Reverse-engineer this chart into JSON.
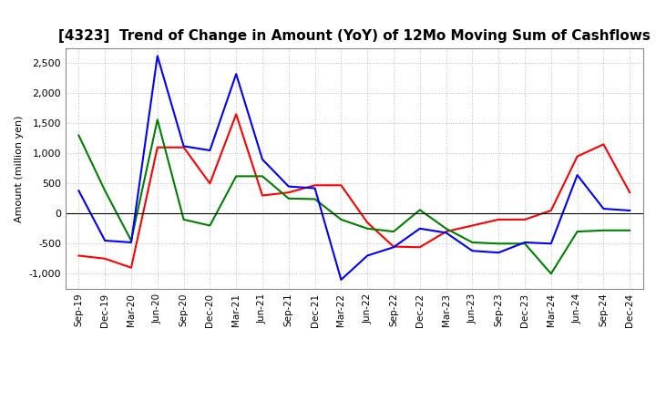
{
  "title": "[4323]  Trend of Change in Amount (YoY) of 12Mo Moving Sum of Cashflows",
  "ylabel": "Amount (million yen)",
  "x_labels": [
    "Sep-19",
    "Dec-19",
    "Mar-20",
    "Jun-20",
    "Sep-20",
    "Dec-20",
    "Mar-21",
    "Jun-21",
    "Sep-21",
    "Dec-21",
    "Mar-22",
    "Jun-22",
    "Sep-22",
    "Dec-22",
    "Mar-23",
    "Jun-23",
    "Sep-23",
    "Dec-23",
    "Mar-24",
    "Jun-24",
    "Sep-24",
    "Dec-24"
  ],
  "operating": [
    -700,
    -750,
    -900,
    1100,
    1100,
    500,
    1650,
    300,
    350,
    470,
    470,
    -150,
    -550,
    -560,
    -300,
    -200,
    -100,
    -100,
    50,
    950,
    1150,
    350
  ],
  "investing": [
    1300,
    380,
    -450,
    1560,
    -100,
    -200,
    620,
    620,
    250,
    240,
    -100,
    -250,
    -300,
    60,
    -250,
    -480,
    -500,
    -500,
    -1000,
    -300,
    -280,
    -280
  ],
  "free": [
    380,
    -450,
    -480,
    2620,
    1120,
    1050,
    2320,
    900,
    450,
    420,
    -1100,
    -700,
    -560,
    -250,
    -320,
    -620,
    -650,
    -480,
    -500,
    640,
    80,
    50
  ],
  "ylim": [
    -1250,
    2750
  ],
  "yticks": [
    -1000,
    -500,
    0,
    500,
    1000,
    1500,
    2000,
    2500
  ],
  "colors": {
    "operating": "#ff0000",
    "investing": "#008000",
    "free": "#0000ff"
  },
  "background_color": "#ffffff",
  "grid_color": "#bbbbbb"
}
